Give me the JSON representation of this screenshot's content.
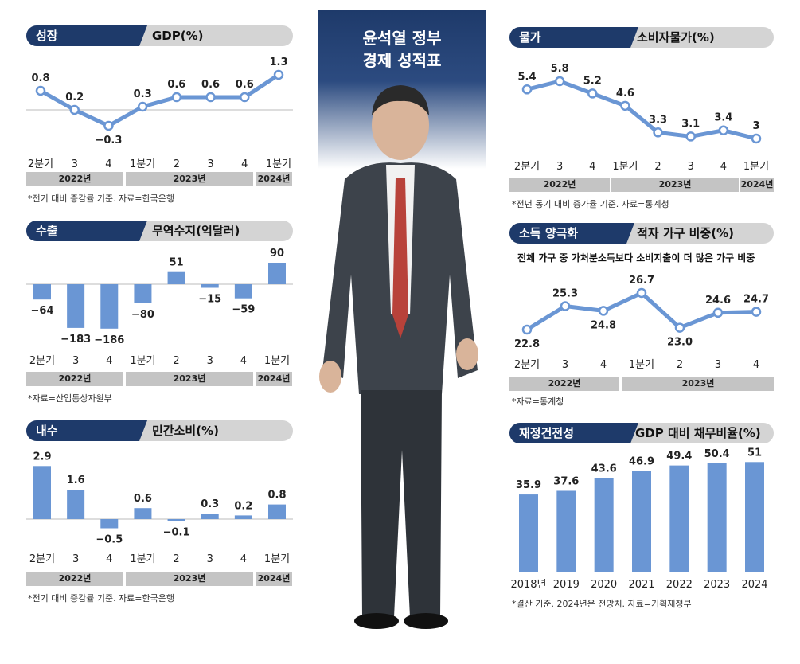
{
  "center": {
    "title_line1": "윤석열 정부",
    "title_line2": "경제 성적표"
  },
  "axes": {
    "quarters": [
      "2분기",
      "3",
      "4",
      "1분기",
      "2",
      "3",
      "4",
      "1분기"
    ],
    "quarters7": [
      "2분기",
      "3",
      "4",
      "1분기",
      "2",
      "3",
      "4"
    ],
    "year_2022": "2022년",
    "year_2023": "2023년",
    "year_2024": "2024년"
  },
  "growth": {
    "tag": "성장",
    "subtitle": "GDP(%)",
    "note": "*전기 대비 증감률 기준. 자료=한국은행",
    "chart_data": {
      "type": "line",
      "categories": [
        "2분기",
        "3",
        "4",
        "1분기",
        "2",
        "3",
        "4",
        "1분기"
      ],
      "values": [
        0.8,
        0.2,
        -0.3,
        0.3,
        0.6,
        0.6,
        0.6,
        1.3
      ],
      "labels": [
        "0.8",
        "0.2",
        "−0.3",
        "0.3",
        "0.6",
        "0.6",
        "0.6",
        "1.3"
      ],
      "ylim": [
        -0.5,
        1.5
      ]
    }
  },
  "exports": {
    "tag": "수출",
    "subtitle": "무역수지(억달러)",
    "note": "*자료=산업통상자원부",
    "chart_data": {
      "type": "bar",
      "categories": [
        "2분기",
        "3",
        "4",
        "1분기",
        "2",
        "3",
        "4",
        "1분기"
      ],
      "values": [
        -64,
        -183,
        -186,
        -80,
        51,
        -15,
        -59,
        90
      ],
      "labels": [
        "−64",
        "−183",
        "−186",
        "−80",
        "51",
        "−15",
        "−59",
        "90"
      ]
    }
  },
  "consumption": {
    "tag": "내수",
    "subtitle": "민간소비(%)",
    "note": "*전기 대비 증감률 기준. 자료=한국은행",
    "chart_data": {
      "type": "bar",
      "categories": [
        "2분기",
        "3",
        "4",
        "1분기",
        "2",
        "3",
        "4",
        "1분기"
      ],
      "values": [
        2.9,
        1.6,
        -0.5,
        0.6,
        -0.1,
        0.3,
        0.2,
        0.8
      ],
      "labels": [
        "2.9",
        "1.6",
        "−0.5",
        "0.6",
        "−0.1",
        "0.3",
        "0.2",
        "0.8"
      ]
    }
  },
  "prices": {
    "tag": "물가",
    "subtitle": "소비자물가(%)",
    "note": "*전년 동기 대비 증가율 기준. 자료=통계청",
    "chart_data": {
      "type": "line",
      "categories": [
        "2분기",
        "3",
        "4",
        "1분기",
        "2",
        "3",
        "4",
        "1분기"
      ],
      "values": [
        5.4,
        5.8,
        5.2,
        4.6,
        3.3,
        3.1,
        3.4,
        3
      ],
      "labels": [
        "5.4",
        "5.8",
        "5.2",
        "4.6",
        "3.3",
        "3.1",
        "3.4",
        "3"
      ]
    }
  },
  "income": {
    "tag": "소득 양극화",
    "subtitle": "적자 가구 비중(%)",
    "caption": "전체 가구 중 가처분소득보다 소비지출이 더 많은 가구 비중",
    "note": "*자료=통계청",
    "chart_data": {
      "type": "line",
      "categories": [
        "2분기",
        "3",
        "4",
        "1분기",
        "2",
        "3",
        "4"
      ],
      "values": [
        22.8,
        25.3,
        24.8,
        26.7,
        23.0,
        24.6,
        24.7
      ],
      "labels": [
        "22.8",
        "25.3",
        "24.8",
        "26.7",
        "23.0",
        "24.6",
        "24.7"
      ]
    }
  },
  "fiscal": {
    "tag": "재정건전성",
    "subtitle": "GDP 대비 채무비율(%)",
    "note": "*결산 기준. 2024년은 전망치. 자료=기획재정부",
    "chart_data": {
      "type": "bar",
      "categories": [
        "2018년",
        "2019",
        "2020",
        "2021",
        "2022",
        "2023",
        "2024"
      ],
      "values": [
        35.9,
        37.6,
        43.6,
        46.9,
        49.4,
        50.4,
        51
      ],
      "labels": [
        "35.9",
        "37.6",
        "43.6",
        "46.9",
        "49.4",
        "50.4",
        "51"
      ]
    }
  },
  "colors": {
    "navy": "#1e3a6a",
    "series": "#6a96d4",
    "band": "#c4c4c4",
    "header": "#d4d4d4"
  }
}
